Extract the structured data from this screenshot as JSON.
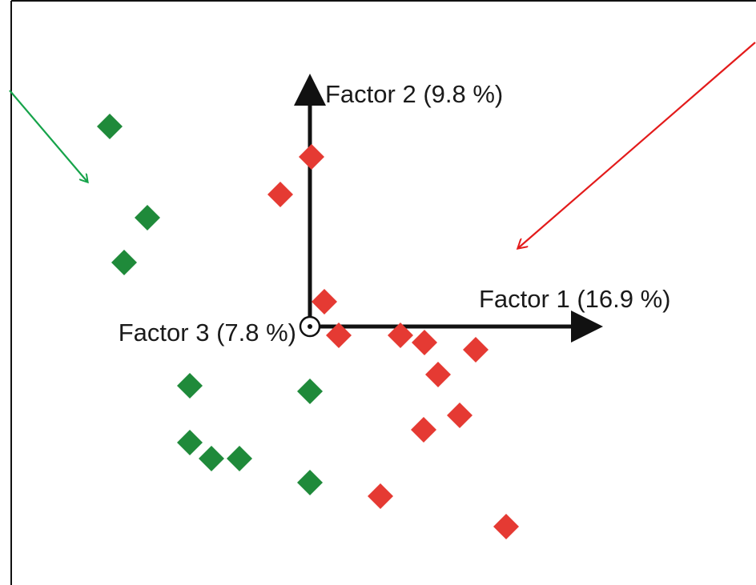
{
  "chart_data": {
    "type": "scatter",
    "title": "",
    "axes": {
      "factor1_label": "Factor 1 (16.9 %)",
      "factor2_label": "Factor 2 (9.8 %)",
      "factor3_label": "Factor 3 (7.8 %)"
    },
    "colors": {
      "green": "#1f8a3a",
      "red": "#e53a33",
      "green_arrow": "#16a34a",
      "red_arrow": "#e31b1b",
      "axis": "#111111"
    },
    "series": [
      {
        "color_key": "green",
        "points": [
          {
            "x": -250,
            "y": 250
          },
          {
            "x": -203,
            "y": 136
          },
          {
            "x": -232,
            "y": 80
          },
          {
            "x": -150,
            "y": -74
          },
          {
            "x": 0,
            "y": -81
          },
          {
            "x": -150,
            "y": -145
          },
          {
            "x": -123,
            "y": -165
          },
          {
            "x": -88,
            "y": -165
          },
          {
            "x": 0,
            "y": -195
          }
        ]
      },
      {
        "color_key": "red",
        "points": [
          {
            "x": 2,
            "y": 212
          },
          {
            "x": -37,
            "y": 165
          },
          {
            "x": 18,
            "y": 31
          },
          {
            "x": 36,
            "y": -11
          },
          {
            "x": 113,
            "y": -11
          },
          {
            "x": 143,
            "y": -20
          },
          {
            "x": 207,
            "y": -29
          },
          {
            "x": 160,
            "y": -60
          },
          {
            "x": 187,
            "y": -111
          },
          {
            "x": 142,
            "y": -129
          },
          {
            "x": 88,
            "y": -212
          },
          {
            "x": 245,
            "y": -250
          }
        ]
      }
    ],
    "pointer_arrows": [
      {
        "color_key": "green_arrow",
        "from": [
          -375,
          295
        ],
        "to": [
          -278,
          181
        ]
      },
      {
        "color_key": "red_arrow",
        "from": [
          556,
          355
        ],
        "to": [
          260,
          98
        ]
      }
    ],
    "axis_extents": {
      "factor1_max": 356,
      "factor2_max": 306
    }
  }
}
